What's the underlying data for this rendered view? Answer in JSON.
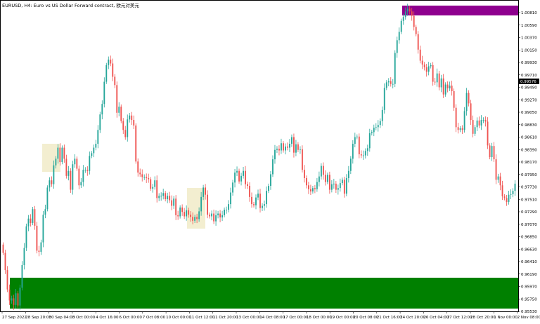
{
  "chart_title": "EURUSD, H4:  Euro vs US Dollar Forward contract, 欧元对美元",
  "colors": {
    "bull": "#26a69a",
    "bear": "#ef5350",
    "supply_zone": "#8e008e",
    "demand_zone": "#008000",
    "highlight_zone": "#f3eed0",
    "current_price_bg": "#000000"
  },
  "current_price": "0.99576",
  "price_axis": {
    "labels": [
      "1.00810",
      "1.00590",
      "1.00370",
      "1.00150",
      "0.99930",
      "0.99710",
      "0.99490",
      "0.99270",
      "0.99050",
      "0.98830",
      "0.98610",
      "0.98390",
      "0.98170",
      "0.97950",
      "0.97730",
      "0.97510",
      "0.97290",
      "0.97070",
      "0.96850",
      "0.96630",
      "0.96410",
      "0.96190",
      "0.95970",
      "0.95750",
      "0.95530"
    ]
  },
  "time_axis": {
    "labels": [
      "27 Sep 2022",
      "28 Sep 20:00",
      "30 Sep 04:00",
      "3 Oct 00:00",
      "4 Oct 16:00",
      "6 Oct 00:00",
      "7 Oct 08:00",
      "10 Oct 00:00",
      "11 Oct 12:00",
      "11 Oct 20:00",
      "13 Oct 00:00",
      "14 Oct 08:00",
      "17 Oct 00:00",
      "18 Oct 00:00",
      "19 Oct 00:00",
      "20 Oct 08:00",
      "21 Oct 16:00",
      "24 Oct 20:00",
      "26 Oct 04:00",
      "27 Oct 12:00",
      "28 Oct 20:00",
      "1 Nov 00:00",
      "2 Nov 08:00",
      "3 Nov 16:00"
    ]
  },
  "chart_data": {
    "type": "candlestick",
    "title": "EURUSD, H4:  Euro vs US Dollar Forward contract, 欧元对美元",
    "y_range": [
      0.9545,
      1.0092
    ],
    "closes": [
      0.9643,
      0.9612,
      0.9577,
      0.9557,
      0.9561,
      0.9549,
      0.957,
      0.9548,
      0.958,
      0.9621,
      0.9652,
      0.9691,
      0.9705,
      0.9697,
      0.9722,
      0.9692,
      0.9647,
      0.9645,
      0.9662,
      0.9712,
      0.9722,
      0.9761,
      0.9774,
      0.9767,
      0.9801,
      0.9813,
      0.9833,
      0.9807,
      0.9833,
      0.9813,
      0.9782,
      0.9791,
      0.9757,
      0.9803,
      0.9813,
      0.9795,
      0.9765,
      0.9771,
      0.9793,
      0.9793,
      0.9791,
      0.9818,
      0.9823,
      0.9833,
      0.984,
      0.9865,
      0.9893,
      0.9912,
      0.9952,
      0.9982,
      0.9992,
      0.9985,
      0.9961,
      0.9946,
      0.9896,
      0.9907,
      0.9881,
      0.9865,
      0.9852,
      0.9884,
      0.9891,
      0.9883,
      0.9873,
      0.9808,
      0.9788,
      0.9785,
      0.978,
      0.978,
      0.9778,
      0.9776,
      0.9759,
      0.9762,
      0.9774,
      0.9742,
      0.9746,
      0.9746,
      0.9751,
      0.974,
      0.9746,
      0.9738,
      0.9728,
      0.9741,
      0.9711,
      0.9709,
      0.9725,
      0.9717,
      0.9709,
      0.972,
      0.9712,
      0.9708,
      0.9701,
      0.9708,
      0.9704,
      0.9718,
      0.9744,
      0.9761,
      0.9748,
      0.9712,
      0.9709,
      0.9714,
      0.97,
      0.9711,
      0.9714,
      0.9707,
      0.9711,
      0.9721,
      0.9721,
      0.9731,
      0.9752,
      0.977,
      0.9788,
      0.9791,
      0.9772,
      0.9782,
      0.9791,
      0.9767,
      0.9764,
      0.9744,
      0.9731,
      0.9729,
      0.9743,
      0.975,
      0.9724,
      0.9728,
      0.9731,
      0.9755,
      0.9764,
      0.9785,
      0.9812,
      0.9829,
      0.9831,
      0.9828,
      0.9841,
      0.9828,
      0.9835,
      0.9833,
      0.984,
      0.9852,
      0.9824,
      0.9839,
      0.9829,
      0.983,
      0.9793,
      0.9778,
      0.9765,
      0.9758,
      0.9754,
      0.976,
      0.9758,
      0.9771,
      0.9781,
      0.98,
      0.9784,
      0.9771,
      0.9784,
      0.9757,
      0.9767,
      0.9768,
      0.9757,
      0.976,
      0.9769,
      0.9775,
      0.975,
      0.9778,
      0.9791,
      0.9813,
      0.984,
      0.9852,
      0.9853,
      0.9821,
      0.9819,
      0.9819,
      0.9827,
      0.9832,
      0.9859,
      0.9861,
      0.9869,
      0.987,
      0.9874,
      0.9881,
      0.9901,
      0.9941,
      0.9951,
      0.9953,
      0.9948,
      0.9948,
      1.0004,
      1.0027,
      1.0042,
      1.0062,
      1.0069,
      1.0079,
      1.0084,
      1.0079,
      1.0071,
      1.0051,
      1.0038,
      1.001,
      0.999,
      0.9983,
      0.9978,
      0.997,
      0.998,
      0.9982,
      0.9952,
      0.9951,
      0.9967,
      0.9942,
      0.9958,
      0.9929,
      0.9947,
      0.994,
      0.9945,
      0.9935,
      0.9905,
      0.987,
      0.9865,
      0.9868,
      0.9865,
      0.9899,
      0.9932,
      0.9913,
      0.9883,
      0.9858,
      0.987,
      0.9882,
      0.9873,
      0.9883,
      0.9883,
      0.988,
      0.9837,
      0.9816,
      0.9836,
      0.9812,
      0.9775,
      0.9781,
      0.9765,
      0.9745,
      0.9742,
      0.9735,
      0.9748,
      0.9749,
      0.9755,
      0.9768
    ]
  }
}
